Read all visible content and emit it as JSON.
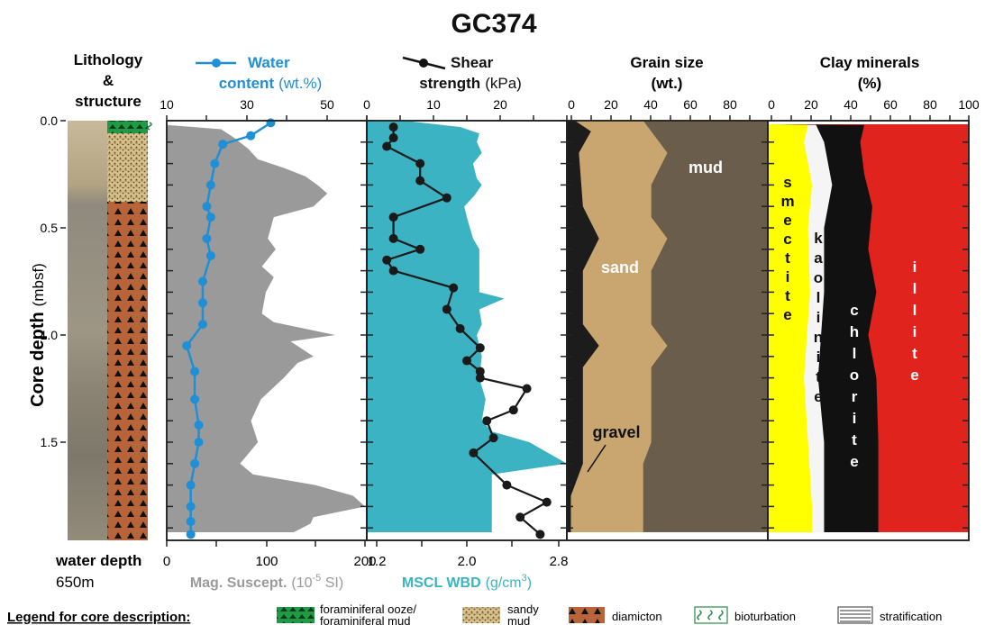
{
  "title": "GC374",
  "colors": {
    "water": "#1f8fd6",
    "shear": "#1a1a1a",
    "magsus": "#9a9a9a",
    "wbd": "#3bb3c3",
    "sand": "#c9a56f",
    "mud": "#6b5d4c",
    "gravel": "#1c1c1c",
    "smectite": "#ffff00",
    "kaolinite": "#f5f5f5",
    "chlorite": "#111111",
    "illite": "#e1231e",
    "diamicton": "#b8643a",
    "sandy_mud": "#d8c08a",
    "foram": "#1f9a45",
    "bioturb": "#2a8a4a"
  },
  "y_axis": {
    "label_main": "Core depth",
    "label_unit": "(mbsf)",
    "ticks": [
      "0.0",
      "0.5",
      "1.0",
      "1.5"
    ]
  },
  "lithology": {
    "title_lines": [
      "Lithology",
      "&",
      "structure"
    ],
    "water_depth_label": "water depth",
    "water_depth_value": "650m"
  },
  "panel_water": {
    "legend_line1": "Water",
    "legend_line2_main": "content",
    "legend_line2_unit": "(wt.%)",
    "top_ticks": [
      "10",
      "30",
      "50"
    ],
    "bottom_ticks": [
      "0",
      "100",
      "200"
    ],
    "bottom_label_main": "Mag. Suscept.",
    "bottom_label_unit": "(10",
    "bottom_label_sup": "-5",
    "bottom_label_unit2": " SI)"
  },
  "panel_shear": {
    "legend_line1": "Shear",
    "legend_line2_main": "strength",
    "legend_line2_unit": "(kPa)",
    "top_ticks": [
      "0",
      "10",
      "20"
    ],
    "bottom_ticks": [
      "1.2",
      "2.0",
      "2.8"
    ],
    "bottom_label_main": "MSCL WBD",
    "bottom_label_unit": "(g/cm",
    "bottom_label_sup": "3",
    "bottom_label_unit2": ")"
  },
  "panel_grain": {
    "title_lines": [
      "Grain size",
      "(wt.)"
    ],
    "top_ticks": [
      "0",
      "20",
      "40",
      "60",
      "80"
    ],
    "labels": {
      "mud": "mud",
      "sand": "sand",
      "gravel": "gravel"
    }
  },
  "panel_clay": {
    "title_lines": [
      "Clay minerals",
      "(%)"
    ],
    "top_ticks": [
      "0",
      "20",
      "40",
      "60",
      "80",
      "100"
    ],
    "labels": {
      "smectite": "smectite",
      "kaolinite": "kaolinite",
      "chlorite": "chlorite",
      "illite": "illite"
    }
  },
  "legend": {
    "title": "Legend for core description:",
    "items": [
      {
        "key": "foram",
        "lines": [
          "foraminiferal ooze/",
          "foraminiferal mud"
        ]
      },
      {
        "key": "sandy_mud",
        "lines": [
          "sandy",
          "mud"
        ]
      },
      {
        "key": "diamicton",
        "lines": [
          "diamicton"
        ]
      },
      {
        "key": "bioturb",
        "lines": [
          "bioturbation"
        ]
      },
      {
        "key": "strat",
        "lines": [
          "stratification"
        ]
      }
    ]
  },
  "chart_data": [
    {
      "type": "line",
      "name": "Water content",
      "xlabel": "Water content (wt.%)",
      "ylabel": "Core depth (mbsf)",
      "xlim": [
        10,
        60
      ],
      "ylim": [
        0,
        1.95
      ],
      "points": [
        [
          36,
          0.01
        ],
        [
          31,
          0.07
        ],
        [
          24,
          0.11
        ],
        [
          22,
          0.2
        ],
        [
          21,
          0.3
        ],
        [
          20,
          0.4
        ],
        [
          21,
          0.45
        ],
        [
          20,
          0.55
        ],
        [
          21,
          0.63
        ],
        [
          19,
          0.75
        ],
        [
          19,
          0.85
        ],
        [
          19,
          0.95
        ],
        [
          15,
          1.05
        ],
        [
          17,
          1.17
        ],
        [
          17,
          1.3
        ],
        [
          18,
          1.42
        ],
        [
          18,
          1.5
        ],
        [
          17,
          1.6
        ],
        [
          16,
          1.7
        ],
        [
          16,
          1.8
        ],
        [
          16,
          1.87
        ],
        [
          16,
          1.93
        ]
      ]
    },
    {
      "type": "area",
      "name": "Mag. Suscept.",
      "xlabel": "Mag. Suscept. (10-5 SI)",
      "xlim": [
        0,
        200
      ],
      "ylim": [
        0,
        1.95
      ],
      "points": [
        [
          0,
          0.0
        ],
        [
          0,
          0.02
        ],
        [
          55,
          0.04
        ],
        [
          68,
          0.08
        ],
        [
          82,
          0.13
        ],
        [
          92,
          0.18
        ],
        [
          118,
          0.22
        ],
        [
          140,
          0.26
        ],
        [
          152,
          0.3
        ],
        [
          162,
          0.34
        ],
        [
          148,
          0.4
        ],
        [
          108,
          0.45
        ],
        [
          102,
          0.55
        ],
        [
          110,
          0.6
        ],
        [
          96,
          0.68
        ],
        [
          108,
          0.73
        ],
        [
          100,
          0.8
        ],
        [
          96,
          0.9
        ],
        [
          108,
          0.94
        ],
        [
          170,
          1.0
        ],
        [
          125,
          1.03
        ],
        [
          148,
          1.1
        ],
        [
          132,
          1.13
        ],
        [
          118,
          1.2
        ],
        [
          95,
          1.3
        ],
        [
          85,
          1.4
        ],
        [
          92,
          1.5
        ],
        [
          74,
          1.6
        ],
        [
          87,
          1.65
        ],
        [
          150,
          1.7
        ],
        [
          188,
          1.75
        ],
        [
          200,
          1.8
        ],
        [
          148,
          1.85
        ],
        [
          145,
          1.88
        ],
        [
          128,
          1.92
        ],
        [
          0,
          1.92
        ]
      ]
    },
    {
      "type": "line",
      "name": "Shear strength",
      "xlabel": "Shear strength (kPa)",
      "xlim": [
        0,
        30
      ],
      "ylim": [
        0,
        1.95
      ],
      "points": [
        [
          4,
          0.03
        ],
        [
          4,
          0.08
        ],
        [
          3,
          0.12
        ],
        [
          8,
          0.2
        ],
        [
          8,
          0.28
        ],
        [
          12,
          0.36
        ],
        [
          4,
          0.45
        ],
        [
          4,
          0.55
        ],
        [
          8,
          0.6
        ],
        [
          3,
          0.65
        ],
        [
          4,
          0.7
        ],
        [
          13,
          0.78
        ],
        [
          12,
          0.88
        ],
        [
          14,
          0.97
        ],
        [
          17,
          1.06
        ],
        [
          15,
          1.12
        ],
        [
          17,
          1.17
        ],
        [
          17,
          1.2
        ],
        [
          24,
          1.25
        ],
        [
          22,
          1.35
        ],
        [
          18,
          1.4
        ],
        [
          19,
          1.48
        ],
        [
          16,
          1.55
        ],
        [
          21,
          1.7
        ],
        [
          27,
          1.78
        ],
        [
          23,
          1.85
        ],
        [
          26,
          1.93
        ]
      ]
    },
    {
      "type": "area",
      "name": "MSCL WBD",
      "xlabel": "MSCL WBD (g/cm3)",
      "xlim": [
        1.2,
        2.8
      ],
      "ylim": [
        0,
        1.95
      ],
      "points": [
        [
          1.2,
          0.0
        ],
        [
          1.5,
          0.0
        ],
        [
          1.95,
          0.03
        ],
        [
          2.1,
          0.06
        ],
        [
          2.08,
          0.1
        ],
        [
          2.12,
          0.15
        ],
        [
          2.05,
          0.2
        ],
        [
          2.08,
          0.27
        ],
        [
          2.12,
          0.3
        ],
        [
          2.06,
          0.35
        ],
        [
          1.98,
          0.4
        ],
        [
          2.0,
          0.45
        ],
        [
          2.05,
          0.55
        ],
        [
          2.1,
          0.6
        ],
        [
          2.1,
          0.7
        ],
        [
          2.1,
          0.8
        ],
        [
          2.3,
          0.83
        ],
        [
          2.1,
          0.88
        ],
        [
          2.12,
          0.95
        ],
        [
          2.08,
          1.0
        ],
        [
          2.12,
          1.1
        ],
        [
          2.1,
          1.2
        ],
        [
          2.15,
          1.3
        ],
        [
          2.12,
          1.4
        ],
        [
          2.2,
          1.45
        ],
        [
          2.5,
          1.5
        ],
        [
          2.8,
          1.6
        ],
        [
          2.2,
          1.65
        ],
        [
          2.2,
          1.75
        ],
        [
          2.2,
          1.92
        ],
        [
          1.2,
          1.92
        ]
      ]
    },
    {
      "type": "area",
      "name": "Grain size",
      "xlabel": "Grain size (wt.)",
      "xlim": [
        0,
        100
      ],
      "ylim": [
        0,
        1.92
      ],
      "stacked_boundaries": {
        "gravel_sand": [
          [
            4,
            0
          ],
          [
            12,
            0.05
          ],
          [
            6,
            0.15
          ],
          [
            8,
            0.4
          ],
          [
            16,
            0.55
          ],
          [
            8,
            0.7
          ],
          [
            8,
            0.95
          ],
          [
            16,
            1.05
          ],
          [
            8,
            1.15
          ],
          [
            8,
            1.6
          ],
          [
            2,
            1.75
          ],
          [
            2,
            1.92
          ]
        ],
        "sand_mud": [
          [
            38,
            0
          ],
          [
            42,
            0.05
          ],
          [
            50,
            0.15
          ],
          [
            42,
            0.3
          ],
          [
            42,
            0.45
          ],
          [
            50,
            0.55
          ],
          [
            42,
            0.7
          ],
          [
            42,
            0.95
          ],
          [
            50,
            1.05
          ],
          [
            42,
            1.15
          ],
          [
            42,
            1.5
          ],
          [
            38,
            1.6
          ],
          [
            38,
            1.92
          ]
        ]
      }
    },
    {
      "type": "area",
      "name": "Clay minerals",
      "xlabel": "Clay minerals (%)",
      "xlim": [
        0,
        100
      ],
      "ylim": [
        0,
        1.92
      ],
      "stacked_boundaries": {
        "smectite_kaolinite": [
          [
            20,
            0.02
          ],
          [
            18,
            0.1
          ],
          [
            22,
            0.3
          ],
          [
            20,
            0.5
          ],
          [
            21,
            0.8
          ],
          [
            18,
            1.2
          ],
          [
            20,
            1.5
          ],
          [
            22,
            1.8
          ],
          [
            22,
            1.92
          ]
        ],
        "kaolinite_chlorite": [
          [
            24,
            0.02
          ],
          [
            28,
            0.1
          ],
          [
            32,
            0.3
          ],
          [
            28,
            0.5
          ],
          [
            28,
            0.8
          ],
          [
            25,
            1.2
          ],
          [
            28,
            1.5
          ],
          [
            28,
            1.8
          ],
          [
            28,
            1.92
          ]
        ],
        "chlorite_illite": [
          [
            48,
            0.02
          ],
          [
            46,
            0.1
          ],
          [
            48,
            0.25
          ],
          [
            52,
            0.4
          ],
          [
            50,
            0.6
          ],
          [
            54,
            0.8
          ],
          [
            50,
            1.0
          ],
          [
            54,
            1.2
          ],
          [
            55,
            1.5
          ],
          [
            55,
            1.8
          ],
          [
            55,
            1.92
          ]
        ]
      }
    }
  ]
}
